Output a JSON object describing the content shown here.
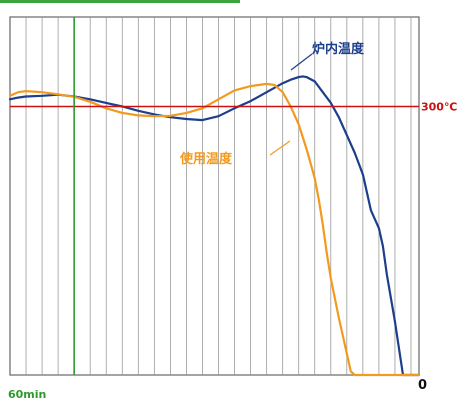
{
  "chart_data": {
    "type": "line",
    "title": "",
    "xlabel": "",
    "ylabel": "",
    "x_range": [
      -8,
      43
    ],
    "y_range": [
      0,
      100
    ],
    "grid": true,
    "reference_line": {
      "value": 75,
      "label": "300℃",
      "color": "#cc1111"
    },
    "markers": {
      "start_label": "60min",
      "start_x": 0,
      "start_color": "#2e9a2e",
      "end_label": "0",
      "end_x": 40
    },
    "series": [
      {
        "name": "炉内温度",
        "color": "#1c3f8c",
        "x": [
          -8,
          -7,
          -6,
          -4,
          -2,
          0,
          2,
          4,
          6,
          8,
          10,
          12,
          14,
          16,
          18,
          20,
          22,
          24,
          26,
          27,
          28,
          28.5,
          29,
          30,
          31,
          32,
          33,
          34,
          35,
          36,
          36.5,
          37,
          38,
          38.5,
          39,
          40,
          41,
          43
        ],
        "y": [
          77,
          77.5,
          77.8,
          78,
          78.3,
          77.8,
          77,
          76,
          75,
          73.8,
          72.8,
          72,
          71.5,
          71.2,
          72.3,
          74.5,
          76.5,
          79,
          81.5,
          82.5,
          83.2,
          83.4,
          83.2,
          82,
          79,
          76,
          72,
          67,
          62,
          56,
          51,
          46,
          41,
          36,
          28,
          15,
          0,
          0
        ]
      },
      {
        "name": "使用温度",
        "color": "#f39a1e",
        "x": [
          -8,
          -7,
          -6,
          -4,
          -2,
          0,
          2,
          4,
          6,
          8,
          10,
          12,
          14,
          16,
          18,
          20,
          22,
          24,
          25,
          26,
          27,
          28,
          29,
          30,
          30.5,
          31,
          31.5,
          32,
          33,
          34,
          34.5,
          35,
          43
        ],
        "y": [
          78,
          79,
          79.3,
          79,
          78.4,
          77.7,
          76.3,
          74.5,
          73.2,
          72.5,
          72.3,
          72.4,
          73.2,
          74.5,
          77,
          79.5,
          80.7,
          81.3,
          81,
          79,
          75,
          70,
          63,
          55,
          49,
          42,
          34,
          27,
          16,
          6,
          1,
          0,
          0
        ]
      }
    ]
  }
}
